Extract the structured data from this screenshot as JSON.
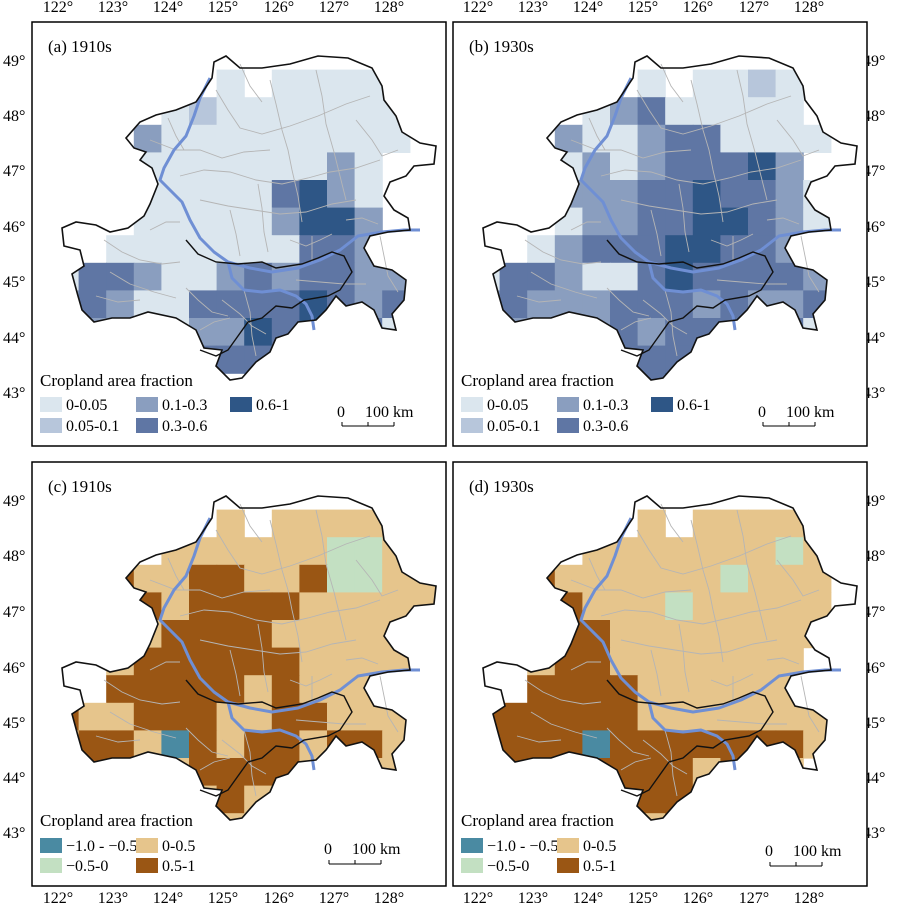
{
  "panels": [
    {
      "label": "(a) 1910s",
      "legend_title": "Cropland area fraction",
      "legend_set": "pos",
      "scale_label": "100 km",
      "scale_zero": "0"
    },
    {
      "label": "(b) 1930s",
      "legend_title": "Cropland area fraction",
      "legend_set": "pos",
      "scale_label": "100 km",
      "scale_zero": "0"
    },
    {
      "label": "(c) 1910s",
      "legend_title": "Cropland area fraction",
      "legend_set": "diff",
      "scale_label": "100 km",
      "scale_zero": "0"
    },
    {
      "label": "(d) 1930s",
      "legend_title": "Cropland area fraction",
      "legend_set": "diff",
      "scale_label": "100 km",
      "scale_zero": "0"
    }
  ],
  "legend_pos": [
    {
      "label": "0-0.05",
      "color": "#dbe6ee"
    },
    {
      "label": "0.1-0.3",
      "color": "#8a9ebf"
    },
    {
      "label": "0.6-1",
      "color": "#2e5686"
    },
    {
      "label": "0.05-0.1",
      "color": "#b7c6db"
    },
    {
      "label": "0.3-0.6",
      "color": "#5f76a4"
    }
  ],
  "legend_diff": [
    {
      "label": "−1.0 - −0.5",
      "color": "#4a8aa2"
    },
    {
      "label": "0-0.5",
      "color": "#e6c58c"
    },
    {
      "label": "−0.5-0",
      "color": "#c3e0c2"
    },
    {
      "label": "0.5-1",
      "color": "#9a5614"
    }
  ],
  "axes": {
    "lon_ticks": [
      "122°",
      "123°",
      "124°",
      "125°",
      "126°",
      "127°",
      "128°"
    ],
    "lat_ticks": [
      "49°",
      "48°",
      "47°",
      "46°",
      "45°",
      "44°",
      "43°"
    ]
  },
  "colors": {
    "river": "#6f8fd4",
    "border": "#111111",
    "county": "#b5b5b5"
  }
}
